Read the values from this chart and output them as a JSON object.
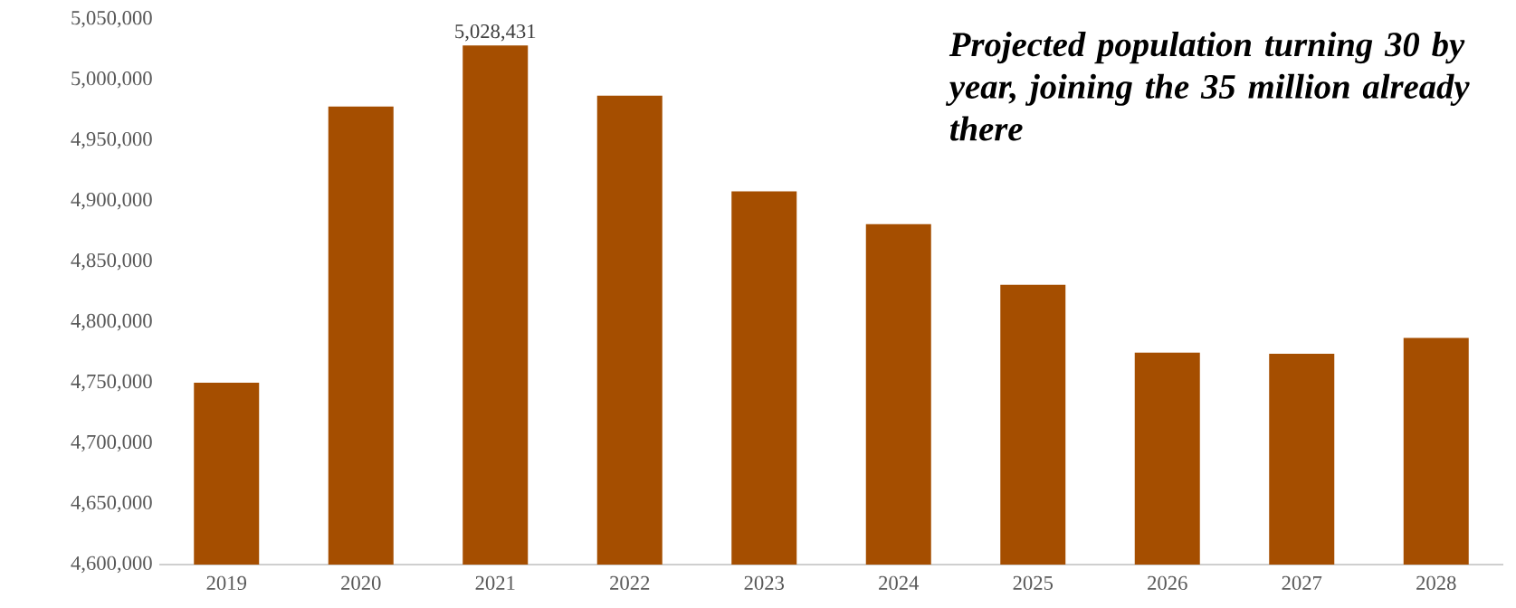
{
  "chart_data": {
    "type": "bar",
    "title": "Projected population turning 30 by year, joining the 35 million already there",
    "categories": [
      "2019",
      "2020",
      "2021",
      "2022",
      "2023",
      "2024",
      "2025",
      "2026",
      "2027",
      "2028"
    ],
    "values": [
      4750000,
      4978000,
      5028431,
      4987000,
      4908000,
      4881000,
      4831000,
      4775000,
      4774000,
      4787000
    ],
    "value_labels": [
      null,
      null,
      "5,028,431",
      null,
      null,
      null,
      null,
      null,
      null,
      null
    ],
    "color": "#a54e00",
    "ylim": [
      4600000,
      5050000
    ],
    "yticks": [
      {
        "value": 4600000,
        "label": "4,600,000"
      },
      {
        "value": 4650000,
        "label": "4,650,000"
      },
      {
        "value": 4700000,
        "label": "4,700,000"
      },
      {
        "value": 4750000,
        "label": "4,750,000"
      },
      {
        "value": 4800000,
        "label": "4,800,000"
      },
      {
        "value": 4850000,
        "label": "4,850,000"
      },
      {
        "value": 4900000,
        "label": "4,900,000"
      },
      {
        "value": 4950000,
        "label": "4,950,000"
      },
      {
        "value": 5000000,
        "label": "5,000,000"
      },
      {
        "value": 5050000,
        "label": "5,050,000"
      }
    ]
  }
}
